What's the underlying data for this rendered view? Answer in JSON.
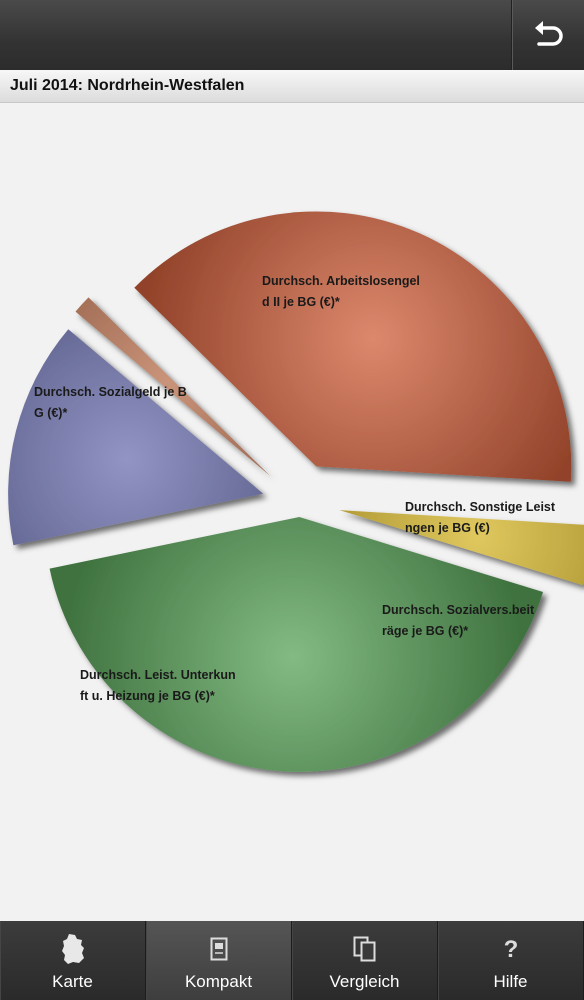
{
  "title": "Juli 2014: Nordrhein-Westfalen",
  "header": {
    "back_icon": "back-arrow-icon"
  },
  "chart_data": {
    "type": "pie",
    "title": "Juli 2014: Nordrhein-Westfalen",
    "slices": [
      {
        "label_lines": [
          "Durchsch. Arbeitslosengel",
          "d II je BG (€)*"
        ],
        "value": 38.6,
        "color": "#d0603c"
      },
      {
        "label_lines": [
          "Durchsch. Sonstige Leist",
          "ngen je BG (€)"
        ],
        "value": 1.2,
        "color": "#b8704e"
      },
      {
        "label_lines": [
          "Durchsch. Sozialvers.beit",
          "räge je BG (€)*"
        ],
        "value": 14.4,
        "color": "#6e72b0"
      },
      {
        "label_lines": [
          "Durchsch. Leist. Unterkun",
          "ft u. Heizung je BG (€)*"
        ],
        "value": 42.0,
        "color": "#5aa35a"
      },
      {
        "label_lines": [
          "Durchsch. Sozialgeld je B",
          "G (€)*"
        ],
        "value": 3.8,
        "color": "#d6b62a"
      }
    ]
  },
  "tabs": [
    {
      "label": "Karte",
      "icon": "germany-map-icon",
      "active": false
    },
    {
      "label": "Kompakt",
      "icon": "compact-view-icon",
      "active": true
    },
    {
      "label": "Vergleich",
      "icon": "compare-icon",
      "active": false
    },
    {
      "label": "Hilfe",
      "icon": "help-icon",
      "active": false
    }
  ]
}
